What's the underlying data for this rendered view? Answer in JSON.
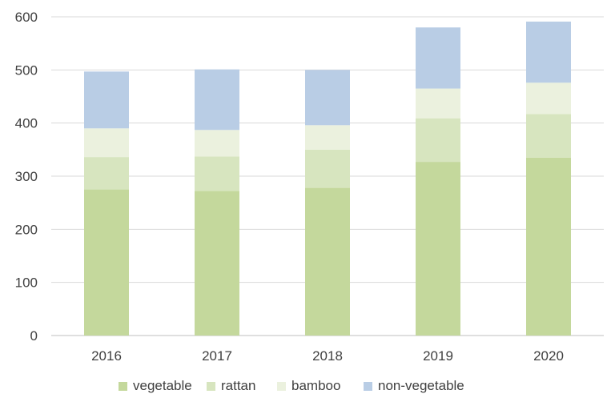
{
  "chart_data": {
    "type": "bar",
    "stacked": true,
    "categories": [
      "2016",
      "2017",
      "2018",
      "2019",
      "2020"
    ],
    "series": [
      {
        "name": "vegetable",
        "values": [
          275,
          272,
          278,
          327,
          335
        ],
        "color": "#c4d89c"
      },
      {
        "name": "rattan",
        "values": [
          61,
          65,
          72,
          82,
          82
        ],
        "color": "#d7e5bf"
      },
      {
        "name": "bamboo",
        "values": [
          54,
          50,
          46,
          56,
          59
        ],
        "color": "#ebf1de"
      },
      {
        "name": "non-vegetable",
        "values": [
          107,
          114,
          104,
          115,
          115
        ],
        "color": "#b9cde5"
      }
    ],
    "yticks": [
      0,
      100,
      200,
      300,
      400,
      500,
      600
    ],
    "ylim": [
      0,
      600
    ],
    "grid": true,
    "legend_position": "bottom"
  }
}
